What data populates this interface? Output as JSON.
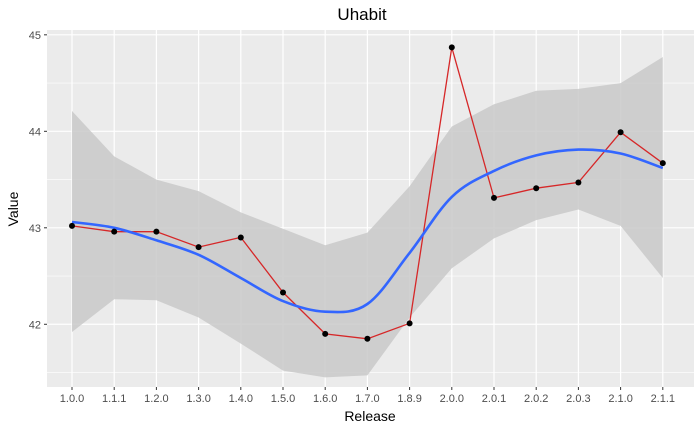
{
  "chart_data": {
    "type": "line",
    "title": "Uhabit",
    "xlabel": "Release",
    "ylabel": "Value",
    "categories": [
      "1.0.0",
      "1.1.1",
      "1.2.0",
      "1.3.0",
      "1.4.0",
      "1.5.0",
      "1.6.0",
      "1.7.0",
      "1.8.9",
      "2.0.0",
      "2.0.1",
      "2.0.2",
      "2.0.3",
      "2.1.0",
      "2.1.1"
    ],
    "ylim": [
      41.35,
      45.05
    ],
    "yticks": [
      42,
      43,
      44,
      45
    ],
    "series": [
      {
        "kind": "observed",
        "values": [
          43.02,
          42.96,
          42.96,
          42.8,
          42.9,
          42.33,
          41.9,
          41.85,
          42.01,
          44.87,
          43.31,
          43.41,
          43.47,
          43.99,
          43.67
        ]
      },
      {
        "kind": "smoothed",
        "values": [
          43.06,
          43.0,
          42.87,
          42.72,
          42.48,
          42.24,
          42.13,
          42.21,
          42.74,
          43.32,
          43.59,
          43.75,
          43.81,
          43.77,
          43.62
        ],
        "ci_low": [
          41.92,
          42.26,
          42.25,
          42.07,
          41.8,
          41.52,
          41.45,
          41.47,
          42.07,
          42.58,
          42.89,
          43.08,
          43.19,
          43.02,
          42.48
        ],
        "ci_high": [
          44.21,
          43.74,
          43.5,
          43.38,
          43.16,
          42.99,
          42.82,
          42.95,
          43.43,
          44.05,
          44.28,
          44.42,
          44.44,
          44.5,
          44.77
        ]
      }
    ],
    "colors": {
      "panel": "#ebebeb",
      "grid": "#ffffff",
      "observed_line": "#d62728",
      "points": "#000000",
      "smooth_line": "#3366ff",
      "ribbon": "#c9c9c9"
    },
    "grid": true,
    "legend": "none"
  }
}
